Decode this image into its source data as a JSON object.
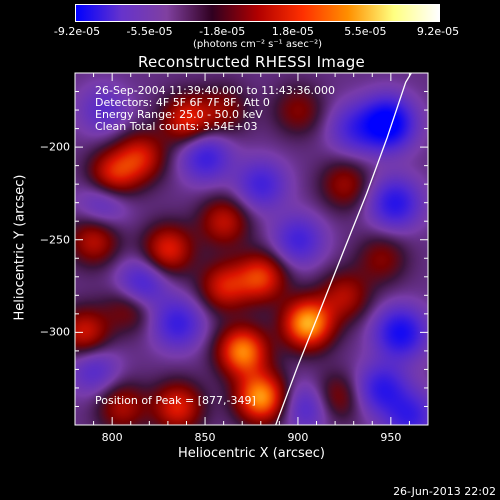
{
  "chart_data": {
    "type": "heatmap",
    "title": "Reconstructed RHESSI Image",
    "xlabel": "Heliocentric X (arcsec)",
    "ylabel": "Heliocentric Y (arcsec)",
    "xlim": [
      780,
      970
    ],
    "ylim": [
      -350,
      -160
    ],
    "x_ticks": [
      "800",
      "850",
      "900",
      "950"
    ],
    "y_ticks": [
      "-200",
      "-250",
      "-300"
    ],
    "colorbar": {
      "unit_label": "(photons cm⁻² s⁻¹ asec⁻²)",
      "min": -9.2e-05,
      "max": 9.2e-05,
      "tick_labels": [
        "-9.2e-05",
        "-5.5e-05",
        "-1.8e-05",
        "1.8e-05",
        "5.5e-05",
        "9.2e-05"
      ],
      "colors": [
        "#0000ff",
        "#6633cc",
        "#8040a0",
        "#300020",
        "#b00000",
        "#ff3000",
        "#ff9000",
        "#ffff80",
        "#ffffff"
      ]
    },
    "annotations": {
      "time_range": "26-Sep-2004 11:39:40.000 to 11:43:36.000",
      "detectors": "Detectors: 4F 5F 6F 7F 8F, Att 0",
      "energy_range": "Energy Range: 25.0 - 50.0 keV",
      "clean_counts": "Clean    Total counts: 3.54E+03",
      "peak_position": "Position of Peak = [877,-349]"
    },
    "peak": {
      "x": 877,
      "y": -349
    },
    "limb_curve": [
      [
        888,
        -350
      ],
      [
        900,
        -318
      ],
      [
        912,
        -288
      ],
      [
        925,
        -255
      ],
      [
        937,
        -225
      ],
      [
        948,
        -195
      ],
      [
        958,
        -165
      ],
      [
        961,
        -160
      ]
    ],
    "blobs": [
      {
        "x": 800,
        "y": -215,
        "v": 0.55
      },
      {
        "x": 815,
        "y": -205,
        "v": 0.5
      },
      {
        "x": 790,
        "y": -250,
        "v": 0.45
      },
      {
        "x": 830,
        "y": -255,
        "v": 0.55
      },
      {
        "x": 810,
        "y": -285,
        "v": 0.4
      },
      {
        "x": 860,
        "y": -240,
        "v": 0.45
      },
      {
        "x": 870,
        "y": -310,
        "v": 0.8
      },
      {
        "x": 880,
        "y": -270,
        "v": 0.6
      },
      {
        "x": 860,
        "y": -275,
        "v": 0.5
      },
      {
        "x": 905,
        "y": -295,
        "v": 0.9
      },
      {
        "x": 925,
        "y": -280,
        "v": 0.4
      },
      {
        "x": 900,
        "y": -180,
        "v": 0.3
      },
      {
        "x": 860,
        "y": -180,
        "v": 0.3
      },
      {
        "x": 880,
        "y": -335,
        "v": 0.85
      },
      {
        "x": 835,
        "y": -340,
        "v": 0.55
      },
      {
        "x": 805,
        "y": -340,
        "v": 0.4
      },
      {
        "x": 920,
        "y": -335,
        "v": 0.35
      },
      {
        "x": 945,
        "y": -260,
        "v": 0.3
      },
      {
        "x": 925,
        "y": -220,
        "v": 0.35
      },
      {
        "x": 785,
        "y": -300,
        "v": 0.5
      },
      {
        "x": 930,
        "y": -190,
        "v": -0.4
      },
      {
        "x": 948,
        "y": -187,
        "v": -0.95
      },
      {
        "x": 952,
        "y": -230,
        "v": -0.6
      },
      {
        "x": 955,
        "y": -300,
        "v": -0.7
      },
      {
        "x": 945,
        "y": -330,
        "v": -0.55
      },
      {
        "x": 815,
        "y": -275,
        "v": -0.55
      },
      {
        "x": 835,
        "y": -295,
        "v": -0.5
      },
      {
        "x": 795,
        "y": -230,
        "v": -0.35
      },
      {
        "x": 880,
        "y": -220,
        "v": -0.45
      },
      {
        "x": 850,
        "y": -205,
        "v": -0.5
      },
      {
        "x": 900,
        "y": -250,
        "v": -0.45
      },
      {
        "x": 790,
        "y": -320,
        "v": -0.35
      },
      {
        "x": 905,
        "y": -340,
        "v": -0.4
      },
      {
        "x": 960,
        "y": -345,
        "v": -0.5
      },
      {
        "x": 840,
        "y": -185,
        "v": 0.55
      },
      {
        "x": 795,
        "y": -180,
        "v": -0.3
      }
    ]
  },
  "timestamp": "26-Jun-2013 22:02"
}
